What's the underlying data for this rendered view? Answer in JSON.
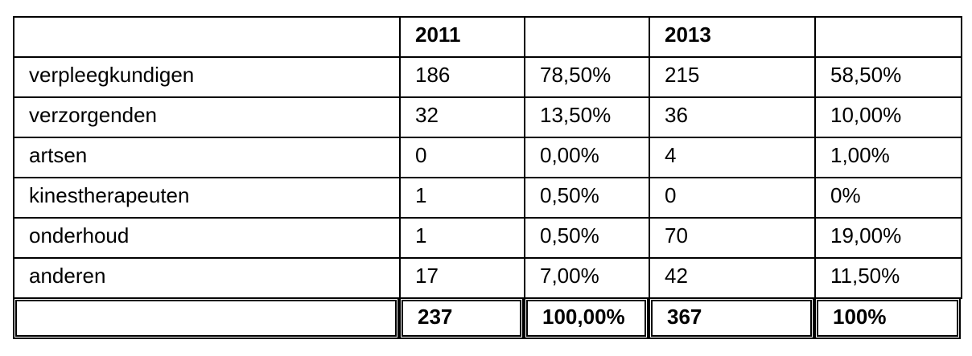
{
  "table": {
    "header": [
      "2011",
      "2013"
    ],
    "rows": [
      [
        "verpleegkundigen",
        "186",
        "78,50%",
        "215",
        "58,50%"
      ],
      [
        "verzorgenden",
        "32",
        "13,50%",
        "36",
        "10,00%"
      ],
      [
        "artsen",
        "0",
        "0,00%",
        "4",
        "1,00%"
      ],
      [
        "kinestherapeuten",
        "1",
        "0,50%",
        "0",
        "0%"
      ],
      [
        "onderhoud",
        "1",
        "0,50%",
        "70",
        "19,00%"
      ],
      [
        "anderen",
        "17",
        "7,00%",
        "42",
        "11,50%"
      ]
    ],
    "total": [
      "237",
      "100,00%",
      "367",
      "100%"
    ]
  }
}
